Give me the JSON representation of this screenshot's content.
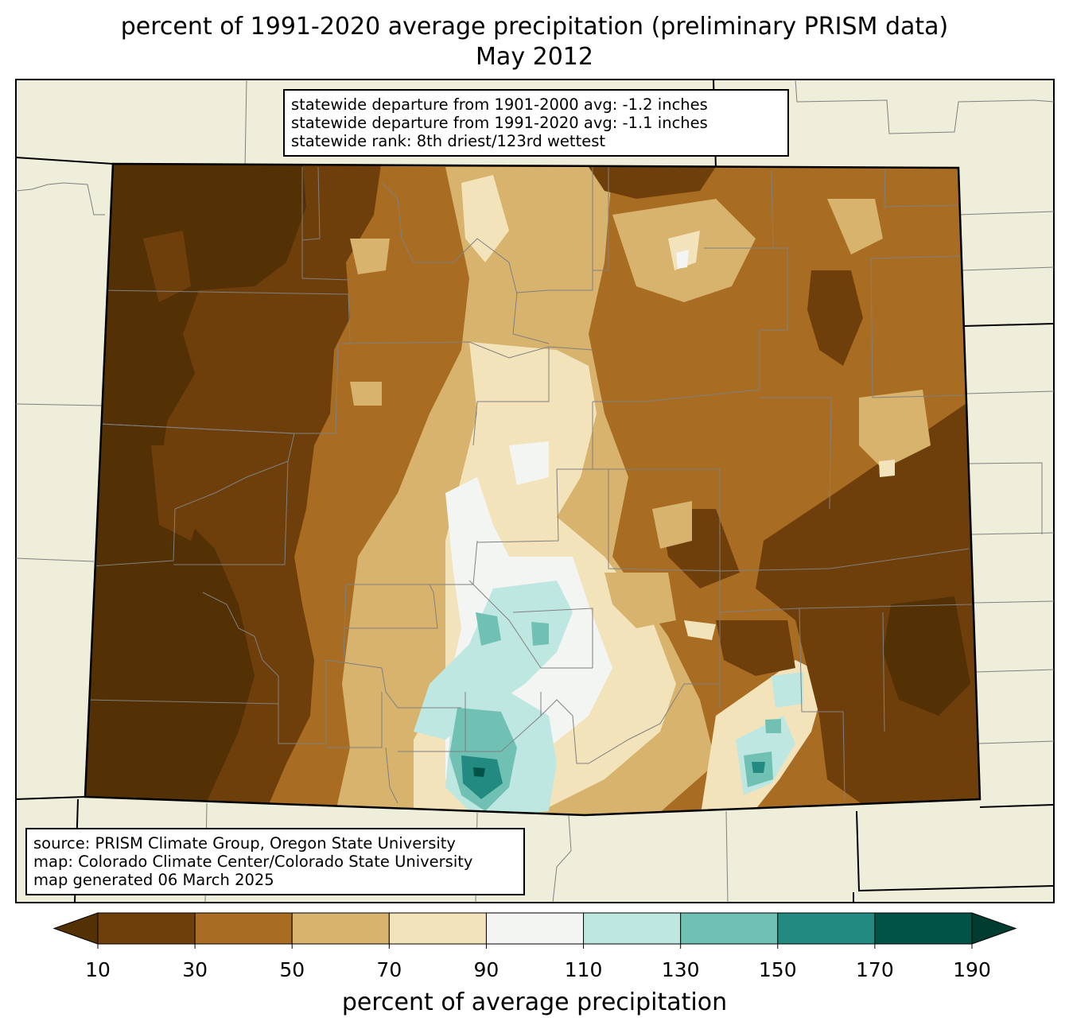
{
  "title": "percent of 1991-2020 average precipitation (preliminary PRISM data)",
  "subtitle": "May 2012",
  "stats": [
    "statewide departure from 1901-2000 avg: -1.2 inches",
    "statewide departure from 1991-2020 avg: -1.1 inches",
    "statewide rank: 8th driest/123rd wettest"
  ],
  "source": [
    "source: PRISM Climate Group, Oregon State University",
    "map: Colorado Climate Center/Colorado State University",
    "map generated 06 March 2025"
  ],
  "colorbar": {
    "label": "percent of average precipitation",
    "ticks": [
      "10",
      "30",
      "50",
      "70",
      "90",
      "110",
      "130",
      "150",
      "170",
      "190"
    ],
    "colors": {
      "under": "#543005",
      "bins": [
        "#6e3f0b",
        "#a86d22",
        "#d7b36d",
        "#f3e3bb",
        "#f3f5f3",
        "#bfe7e2",
        "#70c0b3",
        "#228a80",
        "#005346"
      ],
      "over": "#003c30"
    }
  },
  "map_colors": {
    "background": "#efeedb",
    "border": "#000000",
    "county_lines": "#808080"
  }
}
